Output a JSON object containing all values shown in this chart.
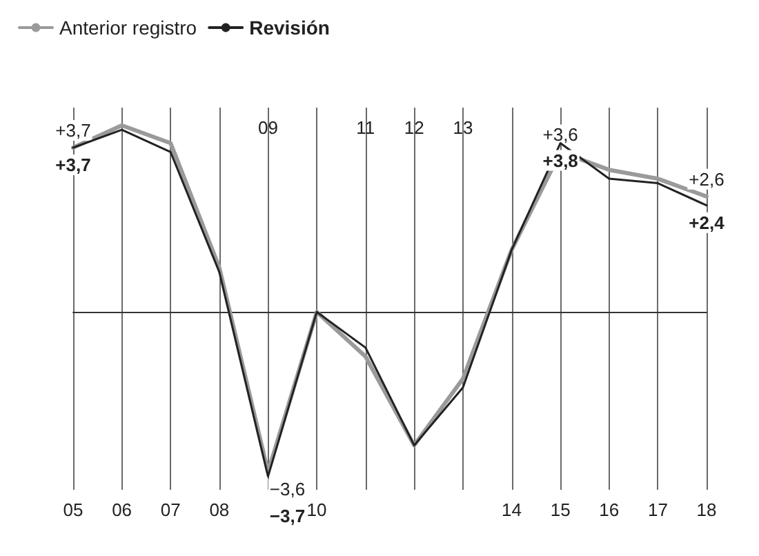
{
  "chart_data": {
    "type": "line",
    "categories": [
      "05",
      "06",
      "07",
      "08",
      "09",
      "10",
      "11",
      "12",
      "13",
      "14",
      "15",
      "16",
      "17",
      "18"
    ],
    "series": [
      {
        "name": "Anterior registro",
        "color": "#9a9a9a",
        "values": [
          3.7,
          4.2,
          3.8,
          1.0,
          -3.6,
          0,
          -1.0,
          -3.0,
          -1.5,
          1.4,
          3.6,
          3.2,
          3.0,
          2.6
        ],
        "value_labels": [
          "+3,7",
          null,
          null,
          null,
          "−3,6",
          null,
          null,
          null,
          null,
          null,
          "+3,6",
          null,
          null,
          "+2,6"
        ]
      },
      {
        "name": "Revisión",
        "color": "#222222",
        "values": [
          3.7,
          4.1,
          3.6,
          0.9,
          -3.7,
          0,
          -0.8,
          -3.0,
          -1.7,
          1.4,
          3.8,
          3.0,
          2.9,
          2.4
        ],
        "value_labels": [
          "+3,7",
          null,
          null,
          null,
          "−3,7",
          null,
          null,
          null,
          null,
          null,
          "+3,8",
          null,
          null,
          "+2,4"
        ]
      }
    ],
    "ylim": [
      -4,
      4.6
    ],
    "tick_labels": "x",
    "grid": "x",
    "legend": "top left",
    "marker": "none"
  }
}
